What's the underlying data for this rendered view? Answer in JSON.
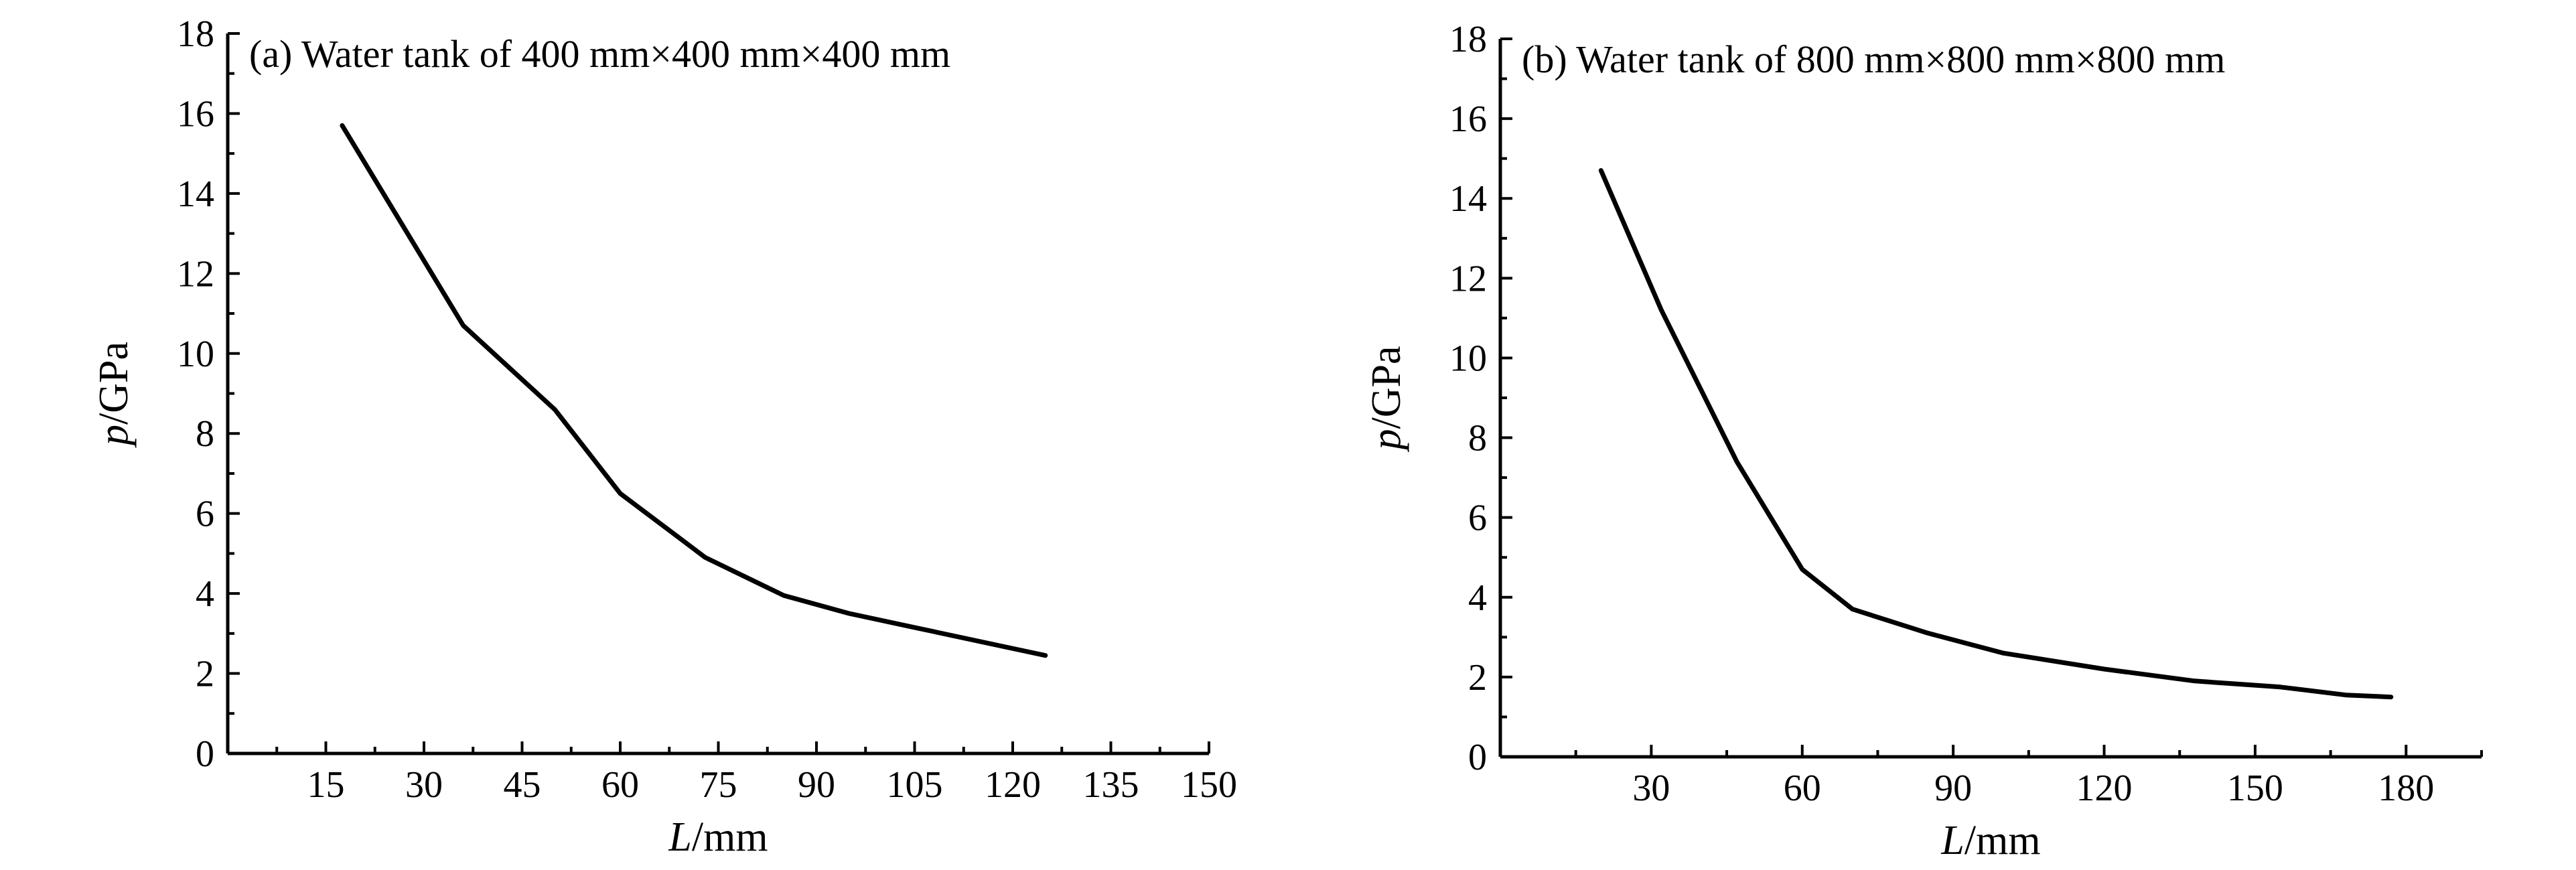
{
  "chart_data": [
    {
      "type": "line",
      "title": "(a) Water tank of 400 mm×400 mm×400 mm",
      "xlabel_italic": "L",
      "xlabel_unit": "/mm",
      "ylabel_italic": "p",
      "ylabel_unit": "/GPa",
      "xlim": [
        0,
        150
      ],
      "ylim": [
        0,
        18
      ],
      "xticks": [
        15,
        30,
        45,
        60,
        75,
        90,
        105,
        120,
        135,
        150
      ],
      "yticks": [
        0,
        2,
        4,
        6,
        8,
        10,
        12,
        14,
        16,
        18
      ],
      "series": [
        {
          "x": [
            17.5,
            36,
            50,
            60,
            73,
            85,
            95,
            105,
            125
          ],
          "y": [
            15.7,
            10.7,
            8.6,
            6.5,
            4.9,
            3.95,
            3.5,
            3.15,
            2.45
          ]
        }
      ]
    },
    {
      "type": "line",
      "title": "(b) Water tank of 800 mm×800 mm×800 mm",
      "xlabel_italic": "L",
      "xlabel_unit": "/mm",
      "ylabel_italic": "p",
      "ylabel_unit": "/GPa",
      "xlim": [
        0,
        195
      ],
      "ylim": [
        0,
        18
      ],
      "xticks": [
        30,
        60,
        90,
        120,
        150,
        180
      ],
      "yticks": [
        0,
        2,
        4,
        6,
        8,
        10,
        12,
        14,
        16,
        18
      ],
      "series": [
        {
          "x": [
            20,
            32,
            47,
            60,
            70,
            85,
            100,
            120,
            138,
            155,
            168,
            177
          ],
          "y": [
            14.7,
            11.2,
            7.4,
            4.7,
            3.7,
            3.1,
            2.6,
            2.2,
            1.9,
            1.75,
            1.55,
            1.5
          ]
        }
      ]
    }
  ]
}
